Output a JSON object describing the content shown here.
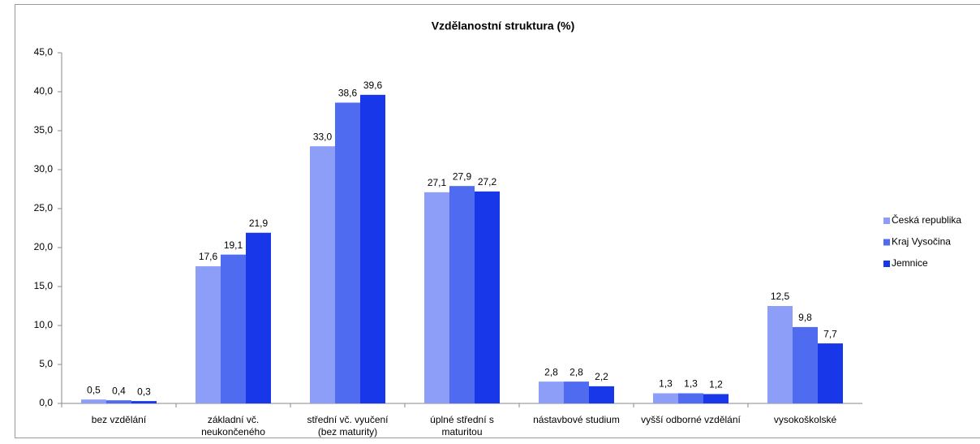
{
  "chart_data": {
    "type": "bar",
    "title": "Vzdělanostní struktura (%)",
    "categories": [
      "bez vzdělání",
      "základní vč. neukončeného",
      "střední vč. vyučení (bez maturity)",
      "úplné střední s maturitou",
      "nástavbové studium",
      "vyšší odborné vzdělání",
      "vysokoškolské"
    ],
    "series": [
      {
        "name": "Česká republika",
        "color": "#8c9ef7",
        "values": [
          0.5,
          17.6,
          33.0,
          27.1,
          2.8,
          1.3,
          12.5
        ],
        "value_labels": [
          "0,5",
          "17,6",
          "33,0",
          "27,1",
          "2,8",
          "1,3",
          "12,5"
        ]
      },
      {
        "name": "Kraj Vysočina",
        "color": "#4f6cf0",
        "values": [
          0.4,
          19.1,
          38.6,
          27.9,
          2.8,
          1.3,
          9.8
        ],
        "value_labels": [
          "0,4",
          "19,1",
          "38,6",
          "27,9",
          "2,8",
          "1,3",
          "9,8"
        ]
      },
      {
        "name": "Jemnice",
        "color": "#1737e9",
        "values": [
          0.3,
          21.9,
          39.6,
          27.2,
          2.2,
          1.2,
          7.7
        ],
        "value_labels": [
          "0,3",
          "21,9",
          "39,6",
          "27,2",
          "2,2",
          "1,2",
          "7,7"
        ]
      }
    ],
    "ylim": [
      0,
      45
    ],
    "yticks": [
      {
        "value": 0,
        "label": "0,0"
      },
      {
        "value": 5,
        "label": "5,0"
      },
      {
        "value": 10,
        "label": "10,0"
      },
      {
        "value": 15,
        "label": "15,0"
      },
      {
        "value": 20,
        "label": "20,0"
      },
      {
        "value": 25,
        "label": "25,0"
      },
      {
        "value": 30,
        "label": "30,0"
      },
      {
        "value": 35,
        "label": "35,0"
      },
      {
        "value": 40,
        "label": "40,0"
      },
      {
        "value": 45,
        "label": "45,0"
      }
    ],
    "legend": "right"
  }
}
